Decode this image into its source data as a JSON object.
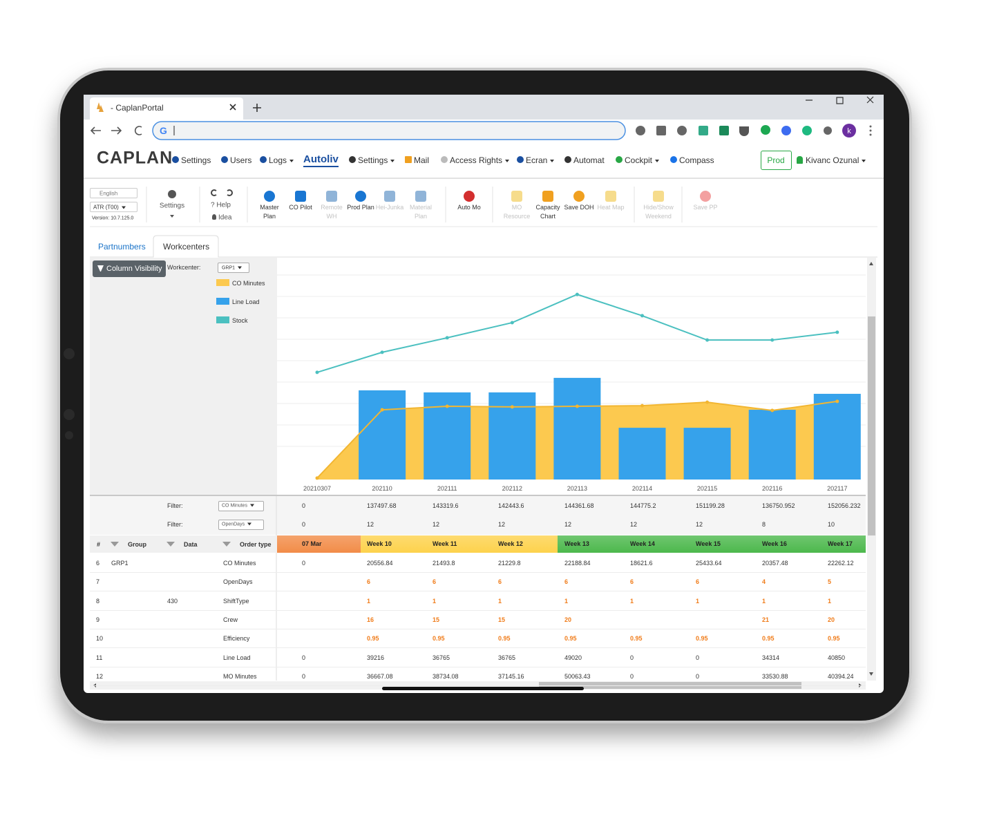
{
  "browser": {
    "tab_title": "- CaplanPortal",
    "address": "G"
  },
  "nav": {
    "logo": "CAPLAN",
    "items": [
      "Settings",
      "Users",
      "Logs",
      "Autoliv",
      "Settings",
      "Mail",
      "Access Rights",
      "Ecran",
      "Automat",
      "Cockpit",
      "Compass"
    ],
    "env": "Prod",
    "user": "Kivanc Ozunal"
  },
  "toolbar": {
    "language": "English",
    "site": "ATR (T00)",
    "version": "Version: 10.7.125.0",
    "settings": "Settings",
    "help": "? Help",
    "idea": "Idea",
    "buttons": [
      {
        "label": "Master Plan",
        "color": "#1976d2",
        "disabled": false
      },
      {
        "label": "CO Pilot",
        "color": "#1976d2",
        "disabled": false
      },
      {
        "label": "Remote WH",
        "color": "#90b4d8",
        "disabled": true
      },
      {
        "label": "Prod Plan",
        "color": "#1976d2",
        "disabled": false
      },
      {
        "label": "Hei-Junka",
        "color": "#90b4d8",
        "disabled": true
      },
      {
        "label": "Material Plan",
        "color": "#90b4d8",
        "disabled": true
      },
      {
        "label": "Auto Mo",
        "color": "#d32f2f",
        "disabled": false
      },
      {
        "label": "MO Resource",
        "color": "#f6dc8c",
        "disabled": true
      },
      {
        "label": "Capacity Chart",
        "color": "#f0a020",
        "disabled": false
      },
      {
        "label": "Save DOH",
        "color": "#f0a020",
        "disabled": false
      },
      {
        "label": "Heat Map",
        "color": "#f6dc8c",
        "disabled": true
      },
      {
        "label": "Hide/Show Weekend",
        "color": "#f6dc8c",
        "disabled": true
      },
      {
        "label": "Save PP",
        "color": "#f3a0a0",
        "disabled": true
      }
    ]
  },
  "tabs": [
    "Partnumbers",
    "Workcenters"
  ],
  "panel": {
    "button": "Column Visibility",
    "workcenter_label": "Workcenter:",
    "workcenter": "GRP1"
  },
  "chart_data": {
    "type": "combo",
    "categories": [
      "20210307",
      "202110",
      "202111",
      "202112",
      "202113",
      "202114",
      "202115",
      "202116",
      "202117"
    ],
    "ylim": [
      0,
      100
    ],
    "series": [
      {
        "name": "CO Minutes",
        "type": "area",
        "color": "#fcc94f",
        "values": [
          0.7,
          34.1,
          35.8,
          35.5,
          35.8,
          36.1,
          37.8,
          33.8,
          38.2
        ]
      },
      {
        "name": "Line Load",
        "type": "bar",
        "color": "#36a2eb",
        "values": [
          0,
          43.6,
          42.6,
          42.6,
          49.7,
          25.3,
          25.3,
          34.1,
          41.9
        ]
      },
      {
        "name": "Stock",
        "type": "line",
        "color": "#4bc0c0",
        "values": [
          52.4,
          62.2,
          69.3,
          76.7,
          90.5,
          80.1,
          68.2,
          68.2,
          72.0
        ]
      }
    ]
  },
  "table": {
    "highlight_color": "#f07c1a",
    "filters": [
      {
        "label": "Filter:",
        "select": "CO Minutes",
        "values": [
          "0",
          "137497.68",
          "143319.6",
          "142443.6",
          "144361.68",
          "144775.2",
          "151199.28",
          "136750.952",
          "152056.232"
        ]
      },
      {
        "label": "Filter:",
        "select": "OpenDays",
        "values": [
          "0",
          "12",
          "12",
          "12",
          "12",
          "12",
          "12",
          "8",
          "10"
        ]
      }
    ],
    "columns": [
      "#",
      "Group",
      "Data",
      "Order type"
    ],
    "periods": [
      {
        "label": "07 Mar",
        "color": "#f28c48"
      },
      {
        "label": "Week 10",
        "color": "#fdd24c"
      },
      {
        "label": "Week 11",
        "color": "#fdd24c"
      },
      {
        "label": "Week 12",
        "color": "#fdd24c"
      },
      {
        "label": "Week 13",
        "color": "#4cb84c"
      },
      {
        "label": "Week 14",
        "color": "#4cb84c"
      },
      {
        "label": "Week 15",
        "color": "#4cb84c"
      },
      {
        "label": "Week 16",
        "color": "#4cb84c"
      },
      {
        "label": "Week 17",
        "color": "#4cb84c"
      }
    ],
    "rows": [
      {
        "highlighted": false,
        "cells": [
          "6",
          "GRP1",
          null,
          "CO Minutes",
          "0",
          "20556.84",
          "21493.8",
          "21229.8",
          "22188.84",
          "18621.6",
          "25433.64",
          "20357.48",
          "22262.12"
        ]
      },
      {
        "highlighted": true,
        "cells": [
          "7",
          null,
          null,
          "OpenDays",
          null,
          "6",
          "6",
          "6",
          "6",
          "6",
          "6",
          "4",
          "5"
        ]
      },
      {
        "highlighted": true,
        "cells": [
          "8",
          null,
          "430",
          "ShiftType",
          null,
          "1",
          "1",
          "1",
          "1",
          "1",
          "1",
          "1",
          "1"
        ]
      },
      {
        "highlighted": true,
        "cells": [
          "9",
          null,
          null,
          "Crew",
          null,
          "16",
          "15",
          "15",
          "20",
          null,
          null,
          "21",
          "20"
        ]
      },
      {
        "highlighted": true,
        "cells": [
          "10",
          null,
          null,
          "Efficiency",
          null,
          "0.95",
          "0.95",
          "0.95",
          "0.95",
          "0.95",
          "0.95",
          "0.95",
          "0.95"
        ]
      },
      {
        "highlighted": false,
        "cells": [
          "11",
          null,
          null,
          "Line Load",
          "0",
          "39216",
          "36765",
          "36765",
          "49020",
          "0",
          "0",
          "34314",
          "40850"
        ]
      },
      {
        "highlighted": false,
        "cells": [
          "12",
          null,
          null,
          "MO Minutes",
          "0",
          "36667.08",
          "38734.08",
          "37145.16",
          "50063.43",
          "0",
          "0",
          "33530.88",
          "40394.24"
        ]
      }
    ]
  }
}
